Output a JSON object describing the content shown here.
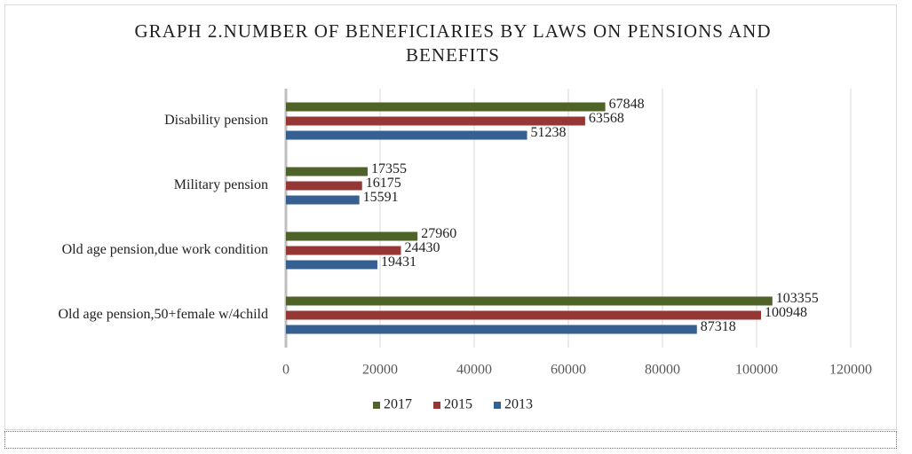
{
  "chart_data": {
    "type": "bar",
    "orientation": "horizontal",
    "title": "GRAPH 2.NUMBER OF BENEFICIARIES BY LAWS ON PENSIONS AND BENEFITS",
    "categories": [
      "Disability pension",
      "Military pension",
      "Old age pension,due work condition",
      "Old age pension,50+female w/4child"
    ],
    "series": [
      {
        "name": "2017",
        "color": "#4f6228",
        "values": [
          67848,
          17355,
          27960,
          103355
        ]
      },
      {
        "name": "2015",
        "color": "#953735",
        "values": [
          63568,
          16175,
          24430,
          100948
        ]
      },
      {
        "name": "2013",
        "color": "#376092",
        "values": [
          51238,
          15591,
          19431,
          87318
        ]
      }
    ],
    "xlim": [
      0,
      120000
    ],
    "xticks": [
      0,
      20000,
      40000,
      60000,
      80000,
      100000,
      120000
    ],
    "grid": true,
    "legend": "bottom"
  }
}
